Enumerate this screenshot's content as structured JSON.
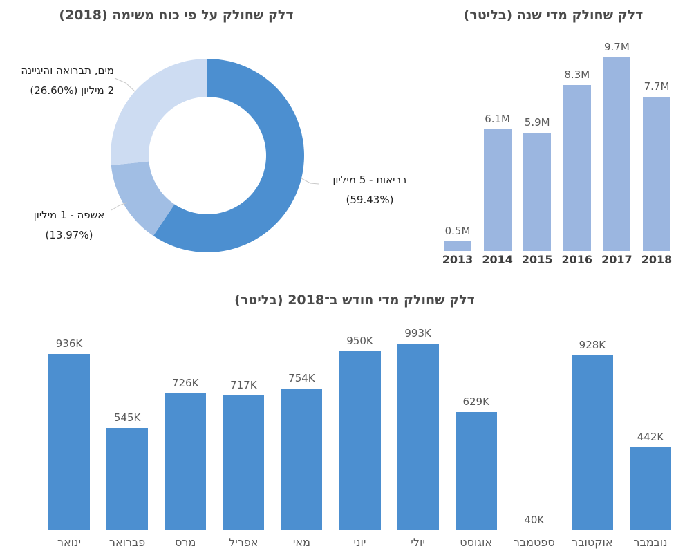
{
  "chart_data": [
    {
      "id": "fuel-by-task-force",
      "type": "donut",
      "title": "דלק שחולק על פי כוח משימה (2018)",
      "legend_position": "outside-callout-labels",
      "start_angle_deg": 0,
      "direction": "clockwise",
      "slices": [
        {
          "category": "בריאות",
          "value_text": "5 מיליון",
          "percent": 59.43,
          "color": "#4C8FD0",
          "label_lines": [
            "בריאות - 5 מיליון",
            "(59.43%)"
          ]
        },
        {
          "category": "אשפה",
          "value_text": "1 מיליון",
          "percent": 13.97,
          "color": "#A1BEE4",
          "label_lines": [
            "אשפה - 1 מיליון",
            "(13.97%)"
          ]
        },
        {
          "category": "מים, תברואה והיגיינה",
          "value_text": "2 מיליון",
          "percent": 26.6,
          "color": "#CDDCF2",
          "label_lines": [
            "מים, תברואה והיגיינה",
            "2 מיליון (26.60%)"
          ]
        }
      ]
    },
    {
      "id": "fuel-per-year",
      "type": "bar",
      "title": "דלק שחולק מדי שנה (בליטר)",
      "categories": [
        "2013",
        "2014",
        "2015",
        "2016",
        "2017",
        "2018"
      ],
      "values": [
        0.5,
        6.1,
        5.9,
        8.3,
        9.7,
        7.7
      ],
      "value_labels": [
        "0.5M",
        "6.1M",
        "5.9M",
        "8.3M",
        "9.7M",
        "7.7M"
      ],
      "bar_color": "#9BB6E0",
      "ylim": [
        0,
        10
      ],
      "grid": false,
      "axis_lines": false
    },
    {
      "id": "fuel-per-month-2018",
      "type": "bar",
      "title": "דלק שחולק מדי חודש ב־2018 (בליטר)",
      "categories": [
        "ינואר",
        "פברואר",
        "מרס",
        "אפריל",
        "מאי",
        "יוני",
        "יולי",
        "אוגוסט",
        "ספטמבר",
        "אוקטובר",
        "נובמבר"
      ],
      "values": [
        936,
        545,
        726,
        717,
        754,
        950,
        993,
        629,
        40,
        928,
        442
      ],
      "value_labels": [
        "936K",
        "545K",
        "726K",
        "717K",
        "754K",
        "950K",
        "993K",
        "629K",
        "40K",
        "928K",
        "442K"
      ],
      "bar_color": "#4C8FD0",
      "bars_not_rendered": [
        "ספטמבר"
      ],
      "ylim": [
        0,
        1000
      ],
      "grid": false,
      "axis_lines": false
    }
  ]
}
